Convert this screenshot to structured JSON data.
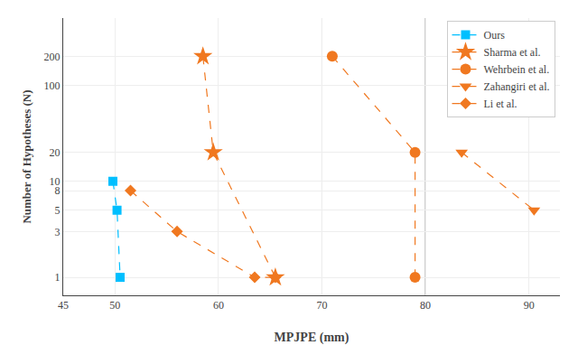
{
  "chart_data": {
    "type": "scatter",
    "xlabel": "MPJPE (mm)",
    "ylabel": "Number of Hypotheses (N)",
    "xlim": [
      45,
      93
    ],
    "ylim": [
      0.65,
      500
    ],
    "xticks": [
      45,
      50,
      60,
      70,
      80,
      90
    ],
    "yticks": [
      1,
      3,
      5,
      8,
      10,
      20,
      100,
      200
    ],
    "log": "y",
    "grid": true,
    "legend": "upper right",
    "vlines": [
      70.0,
      80.0
    ],
    "series": [
      {
        "name": "Ours",
        "color": "#00BFFF",
        "marker": "square",
        "line_style": "dashed",
        "x": [
          49.8,
          50.2,
          50.5
        ],
        "values": [
          10,
          5,
          1
        ]
      },
      {
        "name": "Sharma et al.",
        "color": "#F07820",
        "marker": "star",
        "line_style": "dashed",
        "x": [
          58.5,
          59.5,
          65.5
        ],
        "values": [
          200,
          20,
          1
        ]
      },
      {
        "name": "Wehrbein et al.",
        "color": "#F07820",
        "marker": "circle",
        "line_style": "dashed",
        "x": [
          71.0,
          79.0,
          79.0
        ],
        "values": [
          200,
          20,
          1
        ]
      },
      {
        "name": "Zahangiri et al.",
        "color": "#F07820",
        "marker": "triangle-down",
        "line_style": "dashed",
        "x": [
          83.5,
          90.5
        ],
        "values": [
          20,
          5
        ]
      },
      {
        "name": "Li et al.",
        "color": "#F07820",
        "marker": "diamond",
        "line_style": "dashed",
        "x": [
          51.5,
          56.0,
          63.5,
          65.5
        ],
        "values": [
          8,
          3,
          1,
          1
        ]
      }
    ]
  }
}
